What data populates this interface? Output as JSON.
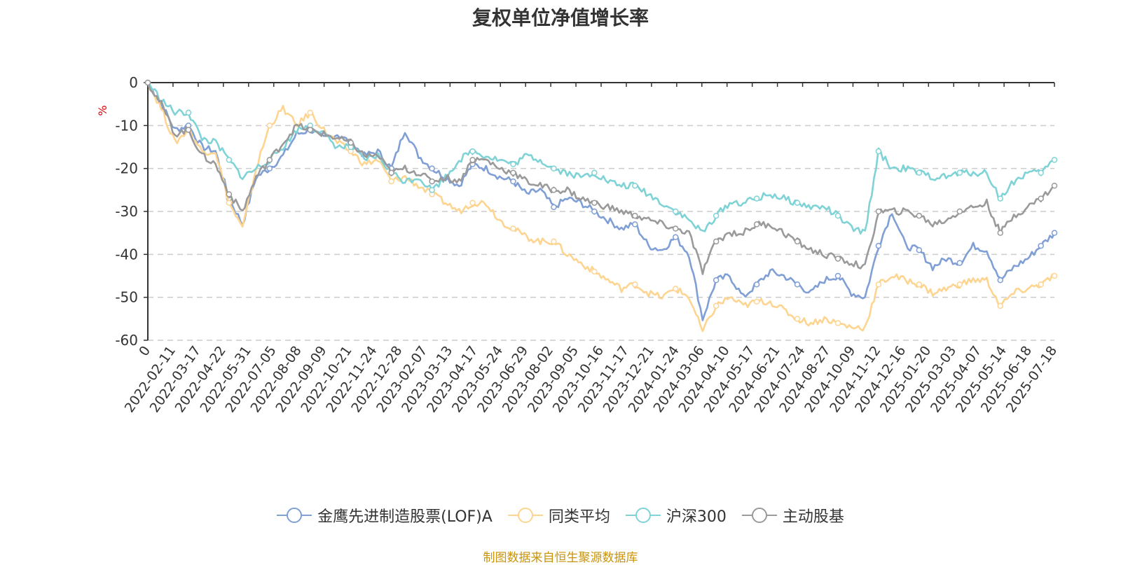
{
  "chart_data": {
    "type": "line",
    "title": "复权单位净值增长率",
    "ylabel": "%",
    "ylim": [
      -60,
      0
    ],
    "yticks": [
      0,
      -10,
      -20,
      -30,
      -40,
      -50,
      -60
    ],
    "x_tick_labels": [
      "0",
      "2022-02-11",
      "2022-03-17",
      "2022-04-22",
      "2022-05-31",
      "2022-07-05",
      "2022-08-08",
      "2022-09-09",
      "2022-10-21",
      "2022-11-24",
      "2022-12-28",
      "2023-02-07",
      "2023-03-13",
      "2023-04-17",
      "2023-05-24",
      "2023-06-29",
      "2023-08-02",
      "2023-09-05",
      "2023-10-16",
      "2023-11-17",
      "2023-12-21",
      "2024-01-24",
      "2024-03-06",
      "2024-04-10",
      "2024-05-17",
      "2024-06-21",
      "2024-07-24",
      "2024-08-27",
      "2024-10-09",
      "2024-11-12",
      "2024-12-16",
      "2025-01-20",
      "2025-03-03",
      "2025-04-07",
      "2025-05-14",
      "2025-06-18",
      "2025-07-18"
    ],
    "grid": true,
    "legend_position": "bottom",
    "series": [
      {
        "name": "金鹰先进制造股票(LOF)A",
        "color": "#7f9fd5",
        "values": [
          0,
          -5,
          -11,
          -10,
          -15,
          -16,
          -27,
          -33,
          -22,
          -20,
          -17,
          -12,
          -11,
          -13,
          -12,
          -14,
          -17,
          -16,
          -20,
          -11,
          -17,
          -20,
          -22,
          -24,
          -19,
          -20,
          -22,
          -23,
          -26,
          -25,
          -29,
          -27,
          -28,
          -30,
          -32,
          -34,
          -33,
          -38,
          -39,
          -36,
          -40,
          -55,
          -46,
          -45,
          -50,
          -47,
          -44,
          -45,
          -47,
          -49,
          -46,
          -45,
          -49,
          -50,
          -38,
          -30,
          -38,
          -39,
          -43,
          -41,
          -42,
          -38,
          -39,
          -46,
          -43,
          -41,
          -38,
          -35
        ]
      },
      {
        "name": "同类平均",
        "color": "#fdd490",
        "values": [
          0,
          -6,
          -14,
          -11,
          -16,
          -16,
          -28,
          -34,
          -20,
          -10,
          -6,
          -10,
          -7,
          -11,
          -14,
          -16,
          -19,
          -18,
          -23,
          -22,
          -24,
          -26,
          -28,
          -30,
          -28,
          -28,
          -32,
          -34,
          -36,
          -37,
          -37,
          -40,
          -42,
          -44,
          -46,
          -48,
          -47,
          -49,
          -50,
          -48,
          -50,
          -58,
          -52,
          -50,
          -52,
          -51,
          -51,
          -53,
          -55,
          -56,
          -55,
          -56,
          -57,
          -57,
          -47,
          -45,
          -46,
          -47,
          -49,
          -48,
          -47,
          -46,
          -46,
          -52,
          -49,
          -48,
          -47,
          -45
        ]
      },
      {
        "name": "沪深300",
        "color": "#7fd3d6",
        "values": [
          0,
          -4,
          -7,
          -7,
          -13,
          -14,
          -18,
          -22,
          -20,
          -18,
          -15,
          -11,
          -10,
          -12,
          -15,
          -15,
          -18,
          -17,
          -21,
          -23,
          -22,
          -25,
          -22,
          -18,
          -16,
          -17,
          -18,
          -19,
          -17,
          -18,
          -20,
          -21,
          -22,
          -21,
          -23,
          -24,
          -24,
          -26,
          -28,
          -30,
          -32,
          -35,
          -31,
          -28,
          -28,
          -27,
          -26,
          -27,
          -28,
          -29,
          -29,
          -31,
          -34,
          -35,
          -16,
          -20,
          -20,
          -21,
          -22,
          -22,
          -21,
          -21,
          -21,
          -27,
          -23,
          -21,
          -21,
          -18
        ]
      },
      {
        "name": "主动股基",
        "color": "#9a9a9a",
        "values": [
          0,
          -5,
          -12,
          -11,
          -17,
          -19,
          -26,
          -30,
          -22,
          -18,
          -14,
          -10,
          -11,
          -12,
          -13,
          -14,
          -17,
          -17,
          -21,
          -20,
          -21,
          -23,
          -22,
          -23,
          -18,
          -18,
          -20,
          -21,
          -23,
          -24,
          -25,
          -25,
          -27,
          -28,
          -29,
          -30,
          -31,
          -32,
          -33,
          -34,
          -35,
          -44,
          -37,
          -35,
          -35,
          -33,
          -33,
          -35,
          -37,
          -39,
          -40,
          -41,
          -42,
          -43,
          -30,
          -30,
          -30,
          -31,
          -33,
          -32,
          -30,
          -29,
          -28,
          -35,
          -31,
          -29,
          -27,
          -24
        ]
      }
    ]
  },
  "source_text": "制图数据来自恒生聚源数据库"
}
